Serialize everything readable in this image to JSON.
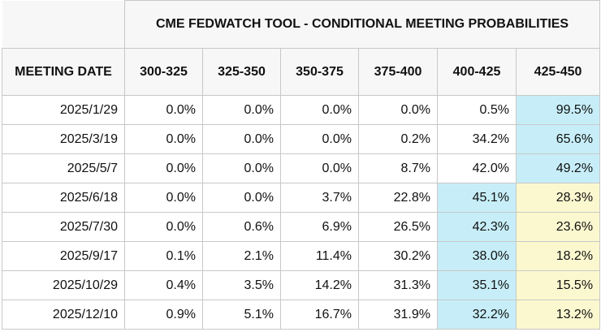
{
  "table": {
    "title": "CME FEDWATCH TOOL - CONDITIONAL MEETING PROBABILITIES",
    "header": [
      "MEETING DATE",
      "300-325",
      "325-350",
      "350-375",
      "375-400",
      "400-425",
      "425-450"
    ],
    "rows": [
      [
        "2025/1/29",
        "0.0%",
        "0.0%",
        "0.0%",
        "0.0%",
        "0.5%",
        "99.5%"
      ],
      [
        "2025/3/19",
        "0.0%",
        "0.0%",
        "0.0%",
        "0.2%",
        "34.2%",
        "65.6%"
      ],
      [
        "2025/5/7",
        "0.0%",
        "0.0%",
        "0.0%",
        "8.7%",
        "42.0%",
        "49.2%"
      ],
      [
        "2025/6/18",
        "0.0%",
        "0.0%",
        "3.7%",
        "22.8%",
        "45.1%",
        "28.3%"
      ],
      [
        "2025/7/30",
        "0.0%",
        "0.6%",
        "6.9%",
        "26.5%",
        "42.3%",
        "23.6%"
      ],
      [
        "2025/9/17",
        "0.1%",
        "2.1%",
        "11.4%",
        "30.2%",
        "38.0%",
        "18.2%"
      ],
      [
        "2025/10/29",
        "0.4%",
        "3.5%",
        "14.2%",
        "31.3%",
        "35.1%",
        "15.5%"
      ],
      [
        "2025/12/10",
        "0.9%",
        "5.1%",
        "16.7%",
        "31.9%",
        "32.2%",
        "13.2%"
      ]
    ]
  }
}
